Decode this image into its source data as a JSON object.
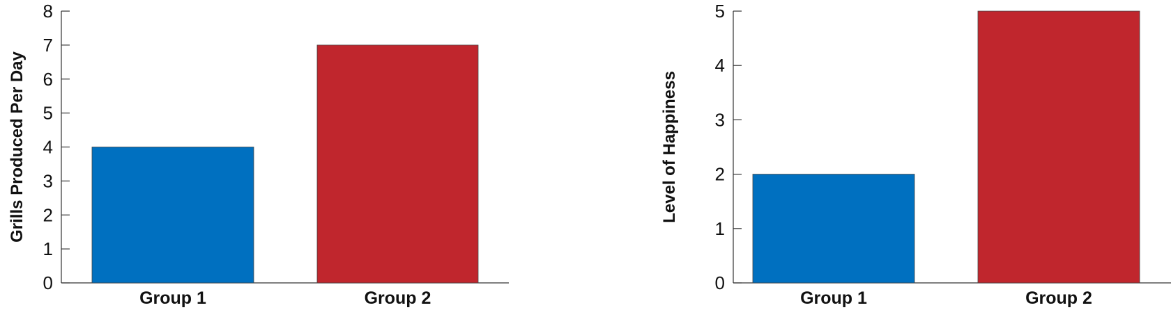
{
  "chart_data": [
    {
      "type": "bar",
      "categories": [
        "Group 1",
        "Group 2"
      ],
      "values": [
        4,
        7
      ],
      "colors": [
        "#0070C0",
        "#C0262D"
      ],
      "ylabel": "Grills Produced Per Day",
      "ylim": [
        0,
        8
      ],
      "yticks": [
        0,
        1,
        2,
        3,
        4,
        5,
        6,
        7,
        8
      ],
      "grid": false
    },
    {
      "type": "bar",
      "categories": [
        "Group 1",
        "Group 2"
      ],
      "values": [
        2,
        5
      ],
      "colors": [
        "#0070C0",
        "#C0262D"
      ],
      "ylabel": "Level of Happiness",
      "ylim": [
        0,
        5
      ],
      "yticks": [
        0,
        1,
        2,
        3,
        4,
        5
      ],
      "grid": false
    }
  ]
}
